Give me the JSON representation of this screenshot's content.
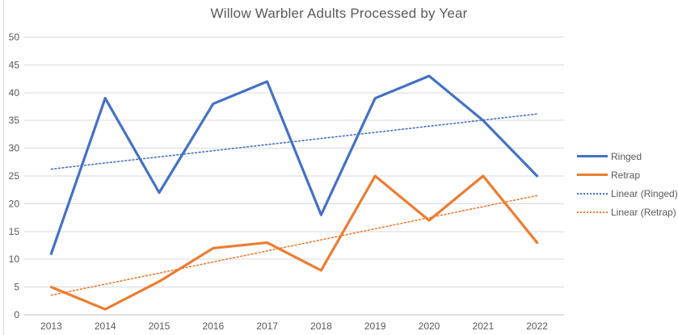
{
  "chart_data": {
    "type": "line",
    "title": "Willow Warbler Adults Processed by Year",
    "categories": [
      "2013",
      "2014",
      "2015",
      "2016",
      "2017",
      "2018",
      "2019",
      "2020",
      "2021",
      "2022"
    ],
    "series": [
      {
        "name": "Ringed",
        "color": "#4472C4",
        "line": "solid",
        "values": [
          11,
          39,
          22,
          38,
          42,
          18,
          39,
          43,
          35,
          25
        ]
      },
      {
        "name": "Retrap",
        "color": "#ED7D31",
        "line": "solid",
        "values": [
          5,
          1,
          6,
          12,
          13,
          8,
          25,
          17,
          25,
          13
        ]
      }
    ],
    "trendlines": [
      {
        "name": "Linear (Ringed)",
        "of_series": "Ringed",
        "color": "#4472C4",
        "line": "dotted"
      },
      {
        "name": "Linear (Retrap)",
        "of_series": "Retrap",
        "color": "#ED7D31",
        "line": "dotted"
      }
    ],
    "y_ticks": [
      0,
      5,
      10,
      15,
      20,
      25,
      30,
      35,
      40,
      45,
      50
    ],
    "ylim": [
      0,
      50
    ],
    "xlabel": "",
    "ylabel": "",
    "grid": true,
    "legend_position": "right",
    "legend": {
      "items": [
        {
          "label": "Ringed",
          "color": "#4472C4",
          "line": "solid"
        },
        {
          "label": "Retrap",
          "color": "#ED7D31",
          "line": "solid"
        },
        {
          "label": "Linear (Ringed)",
          "color": "#4472C4",
          "line": "dotted"
        },
        {
          "label": "Linear (Retrap)",
          "color": "#ED7D31",
          "line": "dotted"
        }
      ]
    },
    "colors": {
      "gridline": "#d9d9d9",
      "zero_axis": "#bfbfbf",
      "text": "#595959",
      "background": "#ffffff"
    }
  }
}
